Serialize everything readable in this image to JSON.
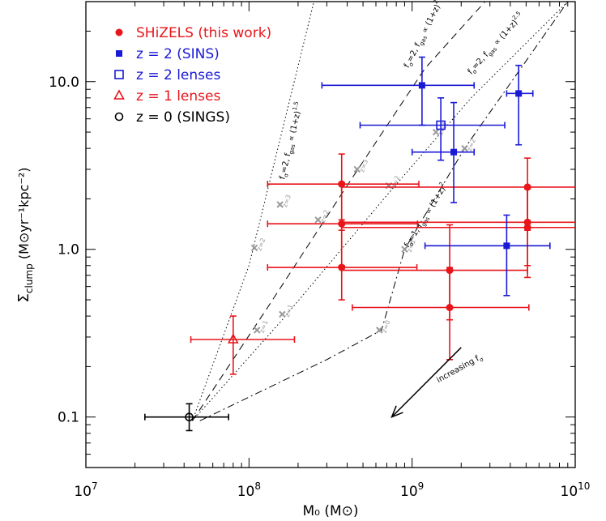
{
  "chart_data": {
    "type": "scatter",
    "title": "",
    "xlabel": "M₀ (M⊙)",
    "ylabel_main": "Σ",
    "ylabel_sub": "clump",
    "ylabel_rest": " (M⊙yr⁻¹kpc⁻²)",
    "x_scale": "log",
    "y_scale": "log",
    "xlim": [
      10000000,
      10000000000
    ],
    "ylim": [
      0.05,
      30
    ],
    "x_ticks": [
      {
        "value": 10000000,
        "base": "10",
        "exp": "7"
      },
      {
        "value": 100000000,
        "base": "10",
        "exp": "8"
      },
      {
        "value": 1000000000,
        "base": "10",
        "exp": "9"
      },
      {
        "value": 10000000000,
        "base": "10",
        "exp": "10"
      }
    ],
    "y_ticks": [
      {
        "value": 0.1,
        "label": "0.1"
      },
      {
        "value": 1,
        "label": "1.0"
      },
      {
        "value": 10,
        "label": "10.0"
      }
    ],
    "legend_position": "top-left",
    "legend": [
      {
        "label": "SHiZELS (this work)",
        "color": "#e8151b",
        "marker": "filled-circle"
      },
      {
        "label": "z = 2 (SINS)",
        "color": "#1a1ad6",
        "marker": "filled-square"
      },
      {
        "label": "z = 2 lenses",
        "color": "#1a1ad6",
        "marker": "open-square"
      },
      {
        "label": "z = 1 lenses",
        "color": "#e8151b",
        "marker": "open-triangle"
      },
      {
        "label": "z = 0 (SINGS)",
        "color": "#000000",
        "marker": "open-circle"
      }
    ],
    "series": [
      {
        "name": "SHiZELS (this work)",
        "color": "#e8151b",
        "marker": "filled-circle",
        "points": [
          {
            "x": 370000000,
            "y": 2.45,
            "xerr": [
              130000000,
              1100000000
            ],
            "yerr": [
              1.5,
              3.7
            ]
          },
          {
            "x": 370000000,
            "y": 1.42,
            "xerr": [
              130000000,
              1080000000
            ],
            "yerr": [
              0.8,
              2.5
            ]
          },
          {
            "x": 370000000,
            "y": 0.78,
            "xerr": [
              130000000,
              1070000000
            ],
            "yerr": [
              0.5,
              1.3
            ]
          },
          {
            "x": 1700000000,
            "y": 0.75,
            "xerr": [
              370000000,
              5100000000
            ],
            "yerr": [
              0.38,
              1.4
            ]
          },
          {
            "x": 1700000000,
            "y": 0.45,
            "xerr": [
              430000000,
              5200000000
            ],
            "yerr": [
              0.22,
              0.78
            ]
          },
          {
            "x": 5100000000,
            "y": 2.35,
            "xerr": [
              370000000,
              10000000000
            ],
            "yerr": [
              1.3,
              3.5
            ]
          },
          {
            "x": 5100000000,
            "y": 1.45,
            "xerr": [
              370000000,
              10000000000
            ],
            "yerr": [
              0.8,
              2.3
            ]
          },
          {
            "x": 5100000000,
            "y": 1.35,
            "xerr": [
              370000000,
              10000000000
            ],
            "yerr": [
              0.68,
              2.3
            ]
          }
        ]
      },
      {
        "name": "z = 2 (SINS)",
        "color": "#1a1ad6",
        "marker": "filled-square",
        "points": [
          {
            "x": 1150000000,
            "y": 9.5,
            "xerr": [
              280000000,
              2400000000
            ],
            "yerr": [
              5.5,
              14
            ]
          },
          {
            "x": 1800000000,
            "y": 3.8,
            "xerr": [
              1000000000,
              2400000000
            ],
            "yerr": [
              1.9,
              7.5
            ]
          },
          {
            "x": 4500000000,
            "y": 8.5,
            "xerr": [
              3800000000,
              5500000000
            ],
            "yerr": [
              4.2,
              12.5
            ]
          },
          {
            "x": 3800000000,
            "y": 1.05,
            "xerr": [
              1200000000,
              7000000000
            ],
            "yerr": [
              0.53,
              1.6
            ]
          }
        ]
      },
      {
        "name": "z = 2 lenses",
        "color": "#1a1ad6",
        "marker": "open-square",
        "points": [
          {
            "x": 1500000000,
            "y": 5.5,
            "xerr": [
              480000000,
              3700000000
            ],
            "yerr": [
              3.4,
              8.0
            ]
          }
        ]
      },
      {
        "name": "z = 1 lenses",
        "color": "#e8151b",
        "marker": "open-triangle",
        "points": [
          {
            "x": 80000000,
            "y": 0.29,
            "xerr": [
              44000000,
              190000000
            ],
            "yerr": [
              0.18,
              0.4
            ]
          }
        ]
      },
      {
        "name": "z = 0 (SINGS)",
        "color": "#000000",
        "marker": "open-circle",
        "points": [
          {
            "x": 43000000,
            "y": 0.1,
            "xerr": [
              23000000,
              75000000
            ],
            "yerr": [
              0.083,
              0.12
            ]
          }
        ]
      }
    ],
    "tracks": [
      {
        "label_main": "f",
        "label_rest": "=2, f",
        "label_sub": "gas",
        "label_formula": " ∝ (1+z)",
        "label_exp": "1.5",
        "label_sigma": "σ",
        "style": "dotted",
        "points": [
          [
            45000000,
            0.095
          ],
          [
            100000000,
            0.8
          ],
          [
            250000000,
            30
          ]
        ],
        "label_anchor": [
          165000000,
          2.6
        ],
        "label_angle": -77,
        "markers": [
          {
            "x": 108000000,
            "y": 1.02,
            "z": "z=2"
          },
          {
            "x": 155000000,
            "y": 1.85,
            "z": "z=3"
          }
        ]
      },
      {
        "label_main": "f",
        "label_rest": "=2, f",
        "label_sub": "gas",
        "label_formula": " ∝ (1+z)",
        "label_exp": "2",
        "label_sigma": "σ",
        "style": "dashed",
        "points": [
          [
            45000000,
            0.095
          ],
          [
            130000000,
            0.45
          ],
          [
            400000000,
            2.4
          ],
          [
            1200000000,
            12
          ],
          [
            2800000000,
            30
          ]
        ],
        "label_anchor": [
          950000000,
          12
        ],
        "label_angle": -63,
        "markers": [
          {
            "x": 112000000,
            "y": 0.33,
            "z": "z=1"
          },
          {
            "x": 265000000,
            "y": 1.5,
            "z": "z=2"
          },
          {
            "x": 460000000,
            "y": 3.0,
            "z": "z=3"
          }
        ]
      },
      {
        "label_main": "f",
        "label_rest": "=2, f",
        "label_sub": "gas",
        "label_formula": " ∝ (1+z)",
        "label_exp": "2.5",
        "label_sigma": "σ",
        "style": "dotted",
        "points": [
          [
            45000000,
            0.095
          ],
          [
            160000000,
            0.38
          ],
          [
            700000000,
            2.1
          ],
          [
            2300000000,
            8
          ],
          [
            9000000000,
            30
          ]
        ],
        "label_anchor": [
          2300000000,
          11
        ],
        "label_angle": -48,
        "markers": [
          {
            "x": 160000000,
            "y": 0.41,
            "z": "z=1"
          },
          {
            "x": 720000000,
            "y": 2.4,
            "z": "z=2"
          },
          {
            "x": 1400000000,
            "y": 5.0,
            "z": "z=3"
          }
        ]
      },
      {
        "label_main": "f",
        "label_rest": "=1, f",
        "label_sub": "gas",
        "label_formula": " ∝ (1+z)",
        "label_exp": "2",
        "label_sigma": "σ",
        "style": "dashdot",
        "points": [
          [
            50000000,
            0.095
          ],
          [
            300000000,
            0.22
          ],
          [
            650000000,
            0.33
          ],
          [
            900000000,
            1.0
          ],
          [
            2100000000,
            4.0
          ],
          [
            9000000000,
            30
          ]
        ],
        "label_anchor": [
          950000000,
          1.02
        ],
        "label_angle": -58,
        "markers": [
          {
            "x": 630000000,
            "y": 0.33,
            "z": "z=0"
          },
          {
            "x": 900000000,
            "y": 1.0,
            "z": "z=1"
          },
          {
            "x": 2100000000,
            "y": 4.0,
            "z": "z=2"
          }
        ]
      }
    ],
    "track_marker_color": "#999999",
    "annotation": {
      "text_main": "increasing f",
      "text_sub": "σ",
      "arrow_from": [
        2000000000,
        0.26
      ],
      "arrow_to": [
        750000000,
        0.1
      ],
      "text_anchor": [
        1450000000,
        0.16
      ],
      "text_angle": -29
    }
  }
}
